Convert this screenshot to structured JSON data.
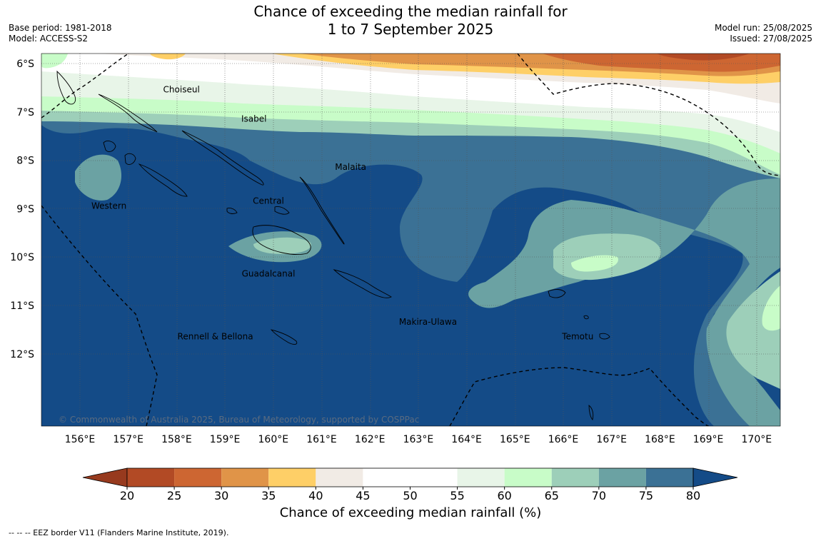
{
  "title": {
    "line1": "Chance of exceeding the median rainfall for",
    "line2": "1 to 7 September 2025"
  },
  "meta": {
    "base_period": "Base period: 1981-2018",
    "model": "Model: ACCESS-S2",
    "model_run": "Model run: 25/08/2025",
    "issued": "Issued: 27/08/2025"
  },
  "map": {
    "lon_range": [
      155.2,
      170.5
    ],
    "lat_range": [
      -5.8,
      -13.5
    ],
    "lon_ticks": [
      "156°E",
      "157°E",
      "158°E",
      "159°E",
      "160°E",
      "161°E",
      "162°E",
      "163°E",
      "164°E",
      "165°E",
      "166°E",
      "167°E",
      "168°E",
      "169°E",
      "170°E"
    ],
    "lat_ticks": [
      "6°S",
      "7°S",
      "8°S",
      "9°S",
      "10°S",
      "11°S",
      "12°S"
    ],
    "copyright": "© Commonwealth of Australia 2025, Bureau of Meteorology, supported by COSPPac",
    "regions": [
      {
        "name": "Choiseul",
        "lon": 158.1,
        "lat": -6.6
      },
      {
        "name": "Isabel",
        "lon": 159.6,
        "lat": -7.2
      },
      {
        "name": "Malaita",
        "lon": 161.6,
        "lat": -8.2
      },
      {
        "name": "Western",
        "lon": 156.6,
        "lat": -9.0
      },
      {
        "name": "Central",
        "lon": 159.9,
        "lat": -8.9
      },
      {
        "name": "Guadalcanal",
        "lon": 159.9,
        "lat": -10.4
      },
      {
        "name": "Makira-Ulawa",
        "lon": 163.2,
        "lat": -11.4
      },
      {
        "name": "Rennell & Bellona",
        "lon": 158.8,
        "lat": -11.7
      },
      {
        "name": "Temotu",
        "lon": 166.3,
        "lat": -11.7
      }
    ]
  },
  "legend": {
    "title": "Chance of exceeding median rainfall (%)",
    "ticks": [
      "20",
      "25",
      "30",
      "35",
      "40",
      "45",
      "50",
      "55",
      "60",
      "65",
      "70",
      "75",
      "80"
    ],
    "colors": [
      "#b24a25",
      "#cd6632",
      "#e09448",
      "#fecf67",
      "#f1ebe5",
      "#ffffff",
      "#ffffff",
      "#e8f5e8",
      "#c8fcc8",
      "#9dcfb9",
      "#6ba2a3",
      "#3b7195",
      "#144b87"
    ],
    "under_color": "#973a1e",
    "over_color": "#144b87"
  },
  "footer": "--  --  -- EEZ border V11 (Flanders Marine Institute, 2019)."
}
